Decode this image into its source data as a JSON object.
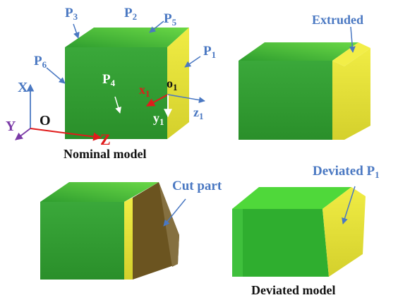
{
  "panels": {
    "nominal": {
      "caption": "Nominal model",
      "labels": {
        "p3": "P",
        "p2": "P",
        "p5": "P",
        "p1": "P",
        "p6": "P",
        "p4": "P",
        "x1": "x",
        "o1": "o",
        "y1": "y",
        "z1": "z",
        "X": "X",
        "Y": "Y",
        "Z": "Z",
        "O": "O"
      },
      "subscripts": {
        "p3": "3",
        "p2": "2",
        "p5": "5",
        "p1": "1",
        "p6": "6",
        "p4": "4",
        "x1": "1",
        "o1": "1",
        "y1": "1",
        "z1": "1"
      }
    },
    "extruded": {
      "label": "Extruded"
    },
    "cut": {
      "label": "Cut part"
    },
    "deviated": {
      "label": "Deviated P",
      "label_sub": "1",
      "caption": "Deviated model"
    }
  },
  "colors": {
    "green_dark": "#2f9e2f",
    "green_light": "#5ccd3c",
    "yellow": "#e6e23a",
    "blue_label": "#4a78c2",
    "arrow_red": "#e01b1b",
    "axis_purple": "#7a3aa6",
    "cut_brown": "#6b5420"
  }
}
